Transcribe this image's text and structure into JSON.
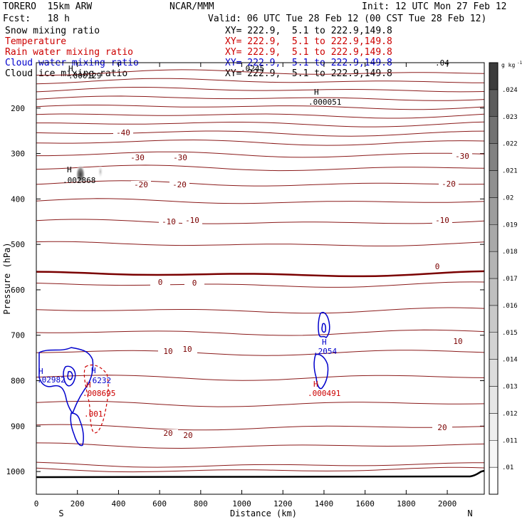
{
  "header": {
    "model": "TORERO  15km ARW",
    "org": "NCAR/MMM",
    "init": "Init: 12 UTC Mon 27 Feb 12",
    "fcst": "Fcst:   18 h",
    "valid": "Valid: 06 UTC Tue 28 Feb 12 (00 CST Tue 28 Feb 12)"
  },
  "legend": [
    {
      "name": "Snow mixing ratio",
      "color": "#000000",
      "coords": "XY= 222.9,  5.1 to 222.9,149.8"
    },
    {
      "name": "Temperature",
      "color": "#cc0000",
      "coords": "XY= 222.9,  5.1 to 222.9,149.8"
    },
    {
      "name": "Rain water mixing ratio",
      "color": "#cc0000",
      "coords": "XY= 222.9,  5.1 to 222.9,149.8"
    },
    {
      "name": "Cloud water mixing ratio",
      "color": "#0000cc",
      "coords": "XY= 222.9,  5.1 to 222.9,149.8"
    },
    {
      "name": "Cloud ice mixing ratio",
      "color": "#000000",
      "coords": "XY= 222.9,  5.1 to 222.9,149.8"
    }
  ],
  "chart_data": {
    "type": "line",
    "xlabel": "Distance (km)",
    "ylabel": "Pressure (hPa)",
    "xlim": [
      0,
      2180
    ],
    "ylim": [
      1050,
      100
    ],
    "x_ticks": [
      0,
      200,
      400,
      600,
      800,
      1000,
      1200,
      1400,
      1600,
      1800,
      2000
    ],
    "y_ticks": [
      200,
      300,
      400,
      500,
      600,
      700,
      800,
      900,
      1000
    ],
    "x_ends": {
      "left": "S",
      "right": "N"
    },
    "colorbar": {
      "unit": "g kg",
      "unit_exp": "-1",
      "ticks": [
        ".01",
        ".011",
        ".012",
        ".013",
        ".014",
        ".015",
        ".016",
        ".017",
        ".018",
        ".019",
        ".02",
        ".021",
        ".022",
        ".023",
        ".024"
      ],
      "colors": [
        "#ffffff",
        "#f7f7f7",
        "#efefef",
        "#e6e6e6",
        "#dddddd",
        "#d3d3d3",
        "#c9c9c9",
        "#bfbfbf",
        "#b4b4b4",
        "#a9a9a9",
        "#9d9d9d",
        "#909090",
        "#828282",
        "#727272",
        "#5c5c5c",
        "#3c3c3c"
      ]
    },
    "temperature_contour_labels": [
      "-40",
      "-30",
      "-30",
      "-30",
      "-20",
      "-20",
      "-20",
      "-10",
      "-10",
      "-10",
      "0",
      "0",
      "0",
      "10",
      "10",
      "10",
      "20",
      "20",
      "20"
    ],
    "maxima_labels": [
      {
        "text": "H",
        "value": ".000129",
        "color": "#000000"
      },
      {
        "text": "H",
        "value": ".002868",
        "color": "#000000"
      },
      {
        "text": "H",
        "value": ".000051",
        "color": "#000000"
      },
      {
        "text": "H",
        "value": ".2054",
        "color": "#0000cc"
      },
      {
        "text": "H",
        "value": ".000491",
        "color": "#cc0000"
      },
      {
        "text": "H",
        "value": ".6232",
        "color": "#0000cc"
      },
      {
        "text": "H",
        "value": ".008695",
        "color": "#cc0000"
      },
      {
        "text": "H",
        "value": ".02982",
        "color": "#0000cc"
      }
    ],
    "minor_labels": [
      ".001",
      ".0245",
      ".04"
    ]
  }
}
